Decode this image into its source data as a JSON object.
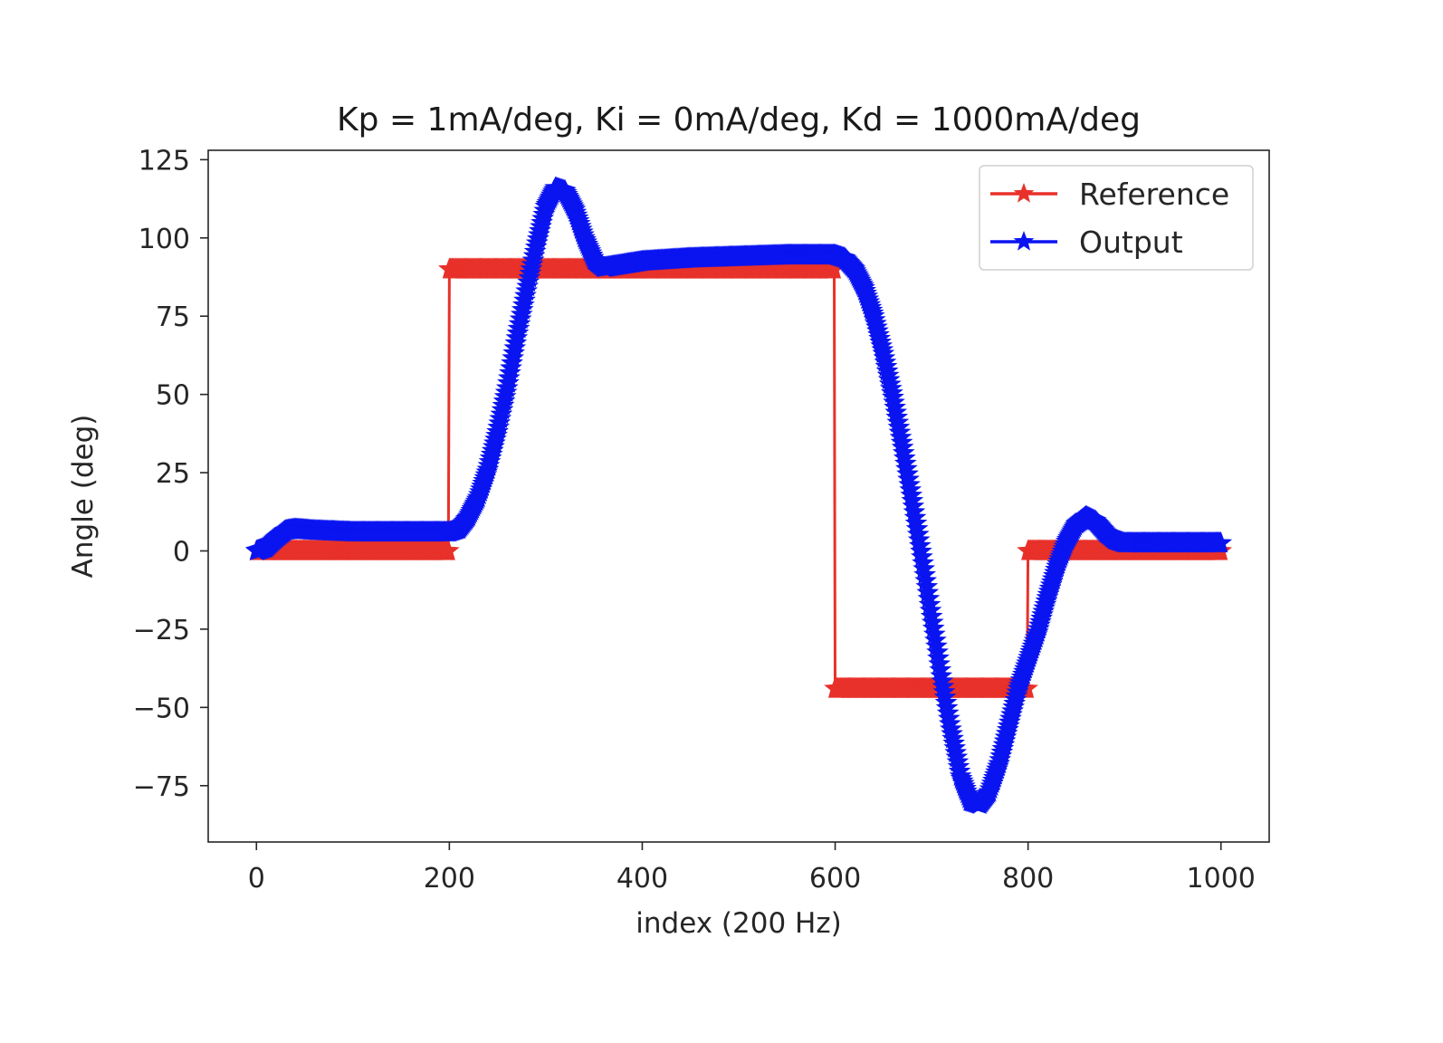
{
  "chart_data": {
    "type": "line",
    "title": "Kp = 1mA/deg, Ki = 0mA/deg, Kd = 1000mA/deg",
    "xlabel": "index (200 Hz)",
    "ylabel": "Angle (deg)",
    "xlim": [
      -50,
      1050
    ],
    "ylim": [
      -93,
      128
    ],
    "xticks": [
      0,
      200,
      400,
      600,
      800,
      1000
    ],
    "xtick_labels": [
      "0",
      "200",
      "400",
      "600",
      "800",
      "1000"
    ],
    "yticks": [
      125,
      100,
      75,
      50,
      25,
      0,
      -25,
      -50,
      -75
    ],
    "ytick_labels": [
      "125",
      "100",
      "75",
      "50",
      "25",
      "0",
      "−25",
      "−50",
      "−75"
    ],
    "grid": false,
    "legend_position": "top-right",
    "marker": "star",
    "series": [
      {
        "name": "Reference",
        "color": "#e8312a",
        "points": [
          [
            0,
            0
          ],
          [
            199,
            0
          ],
          [
            200,
            90
          ],
          [
            599,
            90
          ],
          [
            600,
            -44
          ],
          [
            799,
            -44
          ],
          [
            800,
            0
          ],
          [
            1000,
            0
          ]
        ]
      },
      {
        "name": "Output",
        "color": "#0a14f0",
        "points": [
          [
            0,
            0
          ],
          [
            10,
            1
          ],
          [
            20,
            4
          ],
          [
            30,
            6.5
          ],
          [
            40,
            7
          ],
          [
            60,
            6.5
          ],
          [
            100,
            6
          ],
          [
            150,
            6
          ],
          [
            200,
            6
          ],
          [
            210,
            7
          ],
          [
            220,
            11
          ],
          [
            230,
            17
          ],
          [
            240,
            26
          ],
          [
            250,
            38
          ],
          [
            260,
            52
          ],
          [
            270,
            68
          ],
          [
            280,
            83
          ],
          [
            290,
            97
          ],
          [
            300,
            110
          ],
          [
            310,
            116
          ],
          [
            320,
            115
          ],
          [
            330,
            109
          ],
          [
            340,
            100
          ],
          [
            350,
            93
          ],
          [
            360,
            90.5
          ],
          [
            380,
            91.5
          ],
          [
            400,
            92.5
          ],
          [
            450,
            93.5
          ],
          [
            500,
            94
          ],
          [
            550,
            94.5
          ],
          [
            600,
            94.5
          ],
          [
            610,
            93.5
          ],
          [
            620,
            90
          ],
          [
            630,
            84
          ],
          [
            640,
            75
          ],
          [
            650,
            63
          ],
          [
            660,
            49
          ],
          [
            670,
            33
          ],
          [
            680,
            16
          ],
          [
            690,
            -2
          ],
          [
            700,
            -21
          ],
          [
            710,
            -40
          ],
          [
            720,
            -57
          ],
          [
            730,
            -72
          ],
          [
            740,
            -80
          ],
          [
            750,
            -81
          ],
          [
            760,
            -77
          ],
          [
            770,
            -68
          ],
          [
            780,
            -56
          ],
          [
            790,
            -44
          ],
          [
            800,
            -35
          ],
          [
            810,
            -26
          ],
          [
            820,
            -15
          ],
          [
            830,
            -5
          ],
          [
            840,
            3
          ],
          [
            850,
            8.5
          ],
          [
            860,
            11
          ],
          [
            870,
            9.5
          ],
          [
            880,
            6
          ],
          [
            890,
            3.5
          ],
          [
            900,
            2.5
          ],
          [
            950,
            2.5
          ],
          [
            1000,
            2.5
          ]
        ]
      }
    ]
  }
}
